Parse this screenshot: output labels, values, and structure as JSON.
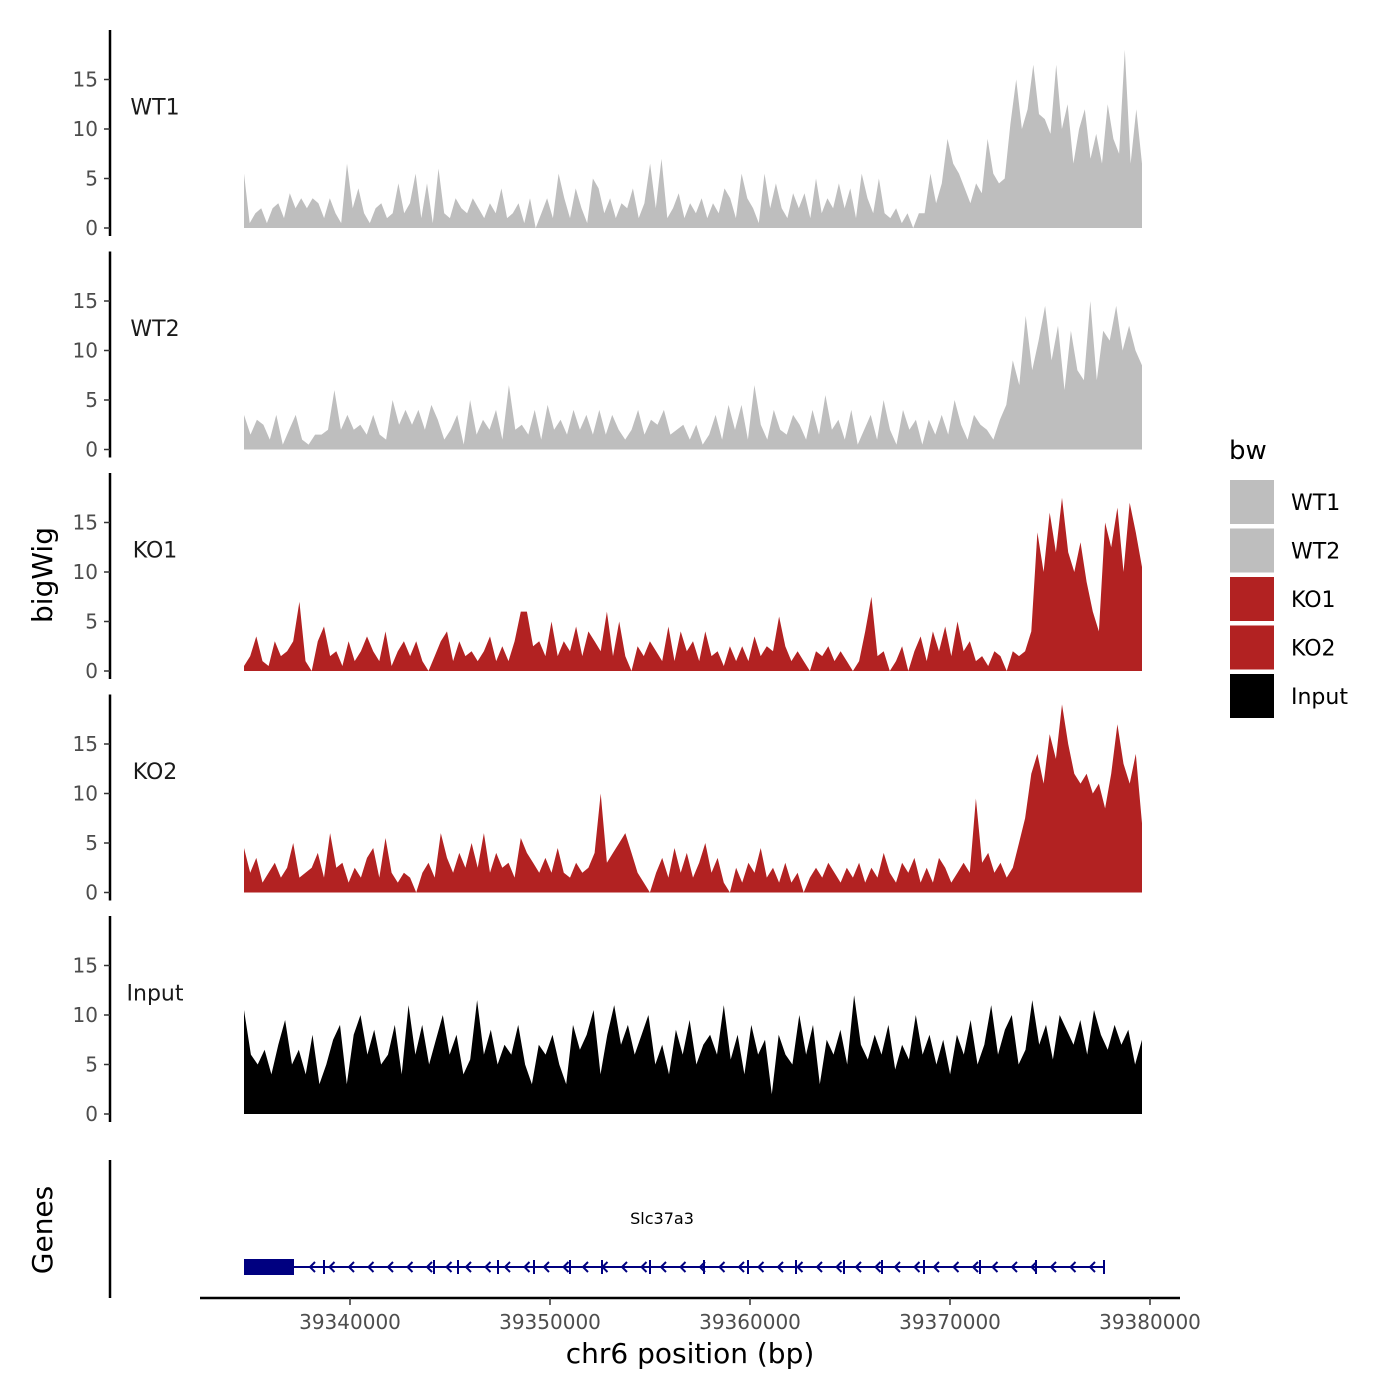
{
  "chart_data": {
    "type": "area",
    "title": "",
    "xlabel": "chr6 position (bp)",
    "ylabel": "bigWig",
    "genes_panel_label": "Genes",
    "xlim": [
      39332500,
      39381500
    ],
    "data_range": [
      39334700,
      39379600
    ],
    "x_ticks": [
      39340000,
      39350000,
      39360000,
      39370000,
      39380000
    ],
    "x_tick_labels": [
      "39340000",
      "39350000",
      "39360000",
      "39370000",
      "39380000"
    ],
    "ylim": [
      0,
      20
    ],
    "y_ticks": [
      0,
      5,
      10,
      15
    ],
    "y_tick_labels": [
      "0",
      "5",
      "10",
      "15"
    ],
    "legend": {
      "title": "bw",
      "placement": "right",
      "entries": [
        {
          "label": "WT1",
          "color": "#bebebe"
        },
        {
          "label": "WT2",
          "color": "#bebebe"
        },
        {
          "label": "KO1",
          "color": "#b22222"
        },
        {
          "label": "KO2",
          "color": "#b22222"
        },
        {
          "label": "Input",
          "color": "#000000"
        }
      ]
    },
    "series": [
      {
        "name": "WT1",
        "color": "#bebebe",
        "values": [
          5.5,
          0.5,
          1.5,
          2,
          0.5,
          2,
          2.5,
          1,
          3.5,
          2,
          3,
          2,
          3,
          2.5,
          1,
          3,
          1.5,
          0.5,
          6.5,
          2,
          4,
          1.5,
          0.5,
          2,
          2.5,
          1,
          1.5,
          4.5,
          1.5,
          2.5,
          5.5,
          1,
          4.5,
          0.5,
          6,
          1.5,
          1,
          3,
          2,
          1.5,
          3,
          2,
          1,
          2.5,
          1.5,
          4,
          1,
          1.5,
          2.5,
          0.5,
          3,
          0,
          1.5,
          3,
          1,
          5.5,
          3,
          1,
          4,
          2,
          0.5,
          5,
          4,
          1.5,
          3,
          1,
          2.5,
          2,
          4,
          1,
          2.5,
          6.5,
          2,
          7,
          1,
          2,
          3.5,
          1,
          2.5,
          1.5,
          3,
          1,
          2.5,
          1.5,
          4,
          3,
          1,
          5.5,
          3,
          2,
          0.5,
          5.5,
          2,
          4.5,
          2,
          1,
          3.5,
          2,
          3.5,
          1,
          5,
          1.5,
          3,
          2,
          4.5,
          2,
          4,
          1,
          5.5,
          3,
          1.5,
          5,
          1.5,
          1,
          2,
          0.5,
          1.5,
          0,
          1.5,
          1.5,
          5.5,
          2.5,
          4.5,
          9,
          6.5,
          5.5,
          4,
          2.5,
          4.5,
          3.5,
          9,
          5.5,
          4.5,
          5,
          10.5,
          15,
          10,
          12,
          16.5,
          11.5,
          11,
          9.5,
          16.5,
          10,
          12.5,
          6.5,
          10,
          12,
          7,
          9.5,
          6.5,
          12.5,
          9,
          7.5,
          18,
          6.5,
          12,
          6.5
        ]
      },
      {
        "name": "WT2",
        "color": "#bebebe",
        "values": [
          3.5,
          1.5,
          3,
          2.5,
          1,
          3.5,
          0.5,
          2,
          3.5,
          1,
          0.5,
          1.5,
          1.5,
          2,
          6,
          2,
          3.5,
          2,
          2.5,
          1.5,
          3.5,
          1.5,
          1,
          5,
          2.5,
          4,
          2.5,
          4,
          2,
          4.5,
          3,
          1,
          2,
          3.5,
          0.5,
          5,
          1.5,
          3,
          2,
          4,
          1,
          6.5,
          2,
          2.5,
          1.5,
          4,
          1,
          4.5,
          2,
          3,
          1.5,
          4,
          2,
          3.5,
          1.5,
          4,
          1.5,
          3.5,
          2,
          1,
          2,
          4,
          1.5,
          3,
          2.5,
          4,
          1.5,
          2,
          2.5,
          1,
          2.5,
          0.5,
          1.5,
          3.5,
          1,
          4.5,
          2,
          4.5,
          1,
          6.5,
          2.5,
          1,
          4,
          2,
          1.5,
          3.5,
          2.5,
          1,
          4,
          1.5,
          5.5,
          2,
          3,
          1,
          4,
          0.5,
          2,
          3.5,
          1,
          5,
          2,
          0.5,
          4,
          2,
          3,
          0.5,
          3,
          1.5,
          3.5,
          1.5,
          5,
          2.5,
          1,
          3.5,
          2.5,
          2,
          1,
          3,
          4.5,
          9,
          6.5,
          13.5,
          8,
          11,
          14.5,
          9,
          12.5,
          6,
          12,
          8,
          7,
          15,
          7,
          12,
          11,
          14.5,
          10,
          12.5,
          10,
          8.5
        ]
      },
      {
        "name": "KO1",
        "color": "#b22222",
        "values": [
          0.5,
          1.5,
          3.5,
          1,
          0.5,
          3,
          1.5,
          2,
          3,
          7,
          1,
          0,
          3,
          4.5,
          1.5,
          2,
          0.5,
          3,
          1,
          2,
          3.5,
          2,
          1,
          4,
          0.5,
          2,
          3,
          1.5,
          3,
          1,
          0,
          1.5,
          3,
          4,
          1,
          3,
          1.5,
          2,
          1,
          2,
          3.5,
          1,
          2.5,
          1,
          3,
          6,
          6,
          2.5,
          3,
          1.5,
          5,
          1.5,
          3,
          2,
          4.5,
          1.5,
          4,
          3,
          2,
          6,
          1.5,
          5,
          1.5,
          0,
          2.5,
          1.5,
          3,
          2,
          1,
          4.5,
          1,
          4,
          2,
          3,
          1,
          4,
          1.5,
          2,
          0.5,
          2.5,
          1,
          2.5,
          1,
          3.5,
          1.5,
          2.5,
          2,
          5.5,
          2.5,
          1,
          2,
          1,
          0,
          2,
          1.5,
          2.5,
          1,
          2,
          1,
          0,
          1,
          4,
          7.5,
          1.5,
          2,
          0,
          1,
          2.5,
          0,
          2,
          3.5,
          1,
          4,
          2,
          4.5,
          1.5,
          5,
          2,
          3,
          1,
          1.5,
          0.5,
          2,
          1.5,
          0,
          2,
          1.5,
          2,
          4,
          14,
          10,
          16,
          12,
          17.5,
          12,
          10,
          13,
          9,
          6,
          4,
          15,
          12.5,
          16.5,
          10,
          17,
          14,
          10.5
        ]
      },
      {
        "name": "KO2",
        "color": "#b22222",
        "values": [
          4.5,
          2,
          3.5,
          1,
          2,
          3,
          1.5,
          2.5,
          5,
          1.5,
          2,
          2.5,
          4,
          1.5,
          6,
          2.5,
          3,
          1,
          2.5,
          1.5,
          3.5,
          4.5,
          1.5,
          5.5,
          2,
          1,
          2,
          1.5,
          0,
          2,
          3,
          1.5,
          6,
          3.5,
          2,
          4,
          2.5,
          5,
          2.5,
          6,
          2,
          4,
          2.5,
          3,
          1.5,
          5.5,
          4,
          3,
          2,
          3.5,
          2,
          4.5,
          2,
          1.5,
          3,
          2,
          2.5,
          4,
          10,
          3,
          4,
          5,
          6,
          4,
          2,
          1,
          0,
          2,
          3.5,
          1.5,
          4.5,
          2,
          4,
          1.5,
          3,
          5,
          2,
          3.5,
          1,
          0,
          2.5,
          1,
          3,
          2,
          4.5,
          1.5,
          2.5,
          1,
          3,
          1,
          2,
          0,
          1.5,
          2.5,
          1.5,
          3,
          2,
          1,
          2.5,
          1.5,
          3,
          1,
          2.5,
          1.5,
          4,
          2,
          1,
          3,
          2,
          3.5,
          1,
          2.5,
          1,
          3.5,
          2.5,
          1,
          2,
          3,
          2,
          9.5,
          3,
          4,
          2,
          3,
          1.5,
          2.5,
          5,
          7.5,
          12,
          14,
          11,
          16,
          13.5,
          19,
          15,
          12,
          11,
          12,
          10,
          11,
          8.5,
          12,
          17,
          13,
          11,
          14,
          7
        ]
      },
      {
        "name": "Input",
        "color": "#000000",
        "values": [
          10.5,
          6,
          5,
          6.5,
          4,
          7,
          9.5,
          5,
          6.5,
          4,
          8,
          3,
          5,
          7.5,
          9,
          3,
          8,
          10,
          6,
          8.5,
          5,
          6,
          9,
          4,
          11,
          6,
          9,
          5,
          7.5,
          10,
          6,
          8,
          4,
          5.5,
          11.5,
          6,
          8.5,
          5,
          7,
          6,
          9,
          5,
          3,
          7,
          6,
          8,
          5,
          3,
          9,
          6.5,
          8,
          10.5,
          4,
          8,
          11,
          7,
          9,
          6,
          8,
          10,
          5,
          7,
          4,
          8.5,
          6,
          9.5,
          5,
          7,
          8,
          6,
          11,
          5.5,
          8,
          4,
          9,
          6,
          7.5,
          2,
          8,
          6,
          5,
          10,
          6,
          9,
          3,
          7.5,
          6,
          8.5,
          5,
          12,
          7,
          5.5,
          8,
          6,
          9,
          4.5,
          7,
          5.5,
          10,
          6,
          8,
          5,
          7.5,
          4,
          8,
          6,
          9.5,
          5,
          7,
          11,
          6,
          8.5,
          10,
          5,
          6.5,
          11.5,
          7,
          9,
          5.5,
          10,
          8.5,
          7,
          9.5,
          6,
          10.5,
          8,
          6.5,
          9,
          7,
          8.5,
          5,
          7.5
        ]
      }
    ],
    "gene": {
      "name": "Slc37a3",
      "start": 39334700,
      "end": 39377700,
      "thick_start": 39334700,
      "thick_end": 39337200,
      "strand": "-",
      "color": "#000080",
      "exons": [
        39338700,
        39344200,
        39345400,
        39347400,
        39349200,
        39351000,
        39352600,
        39355000,
        39357700,
        39359900,
        39362300,
        39364700,
        39366600,
        39368700,
        39371500,
        39374300
      ]
    }
  }
}
